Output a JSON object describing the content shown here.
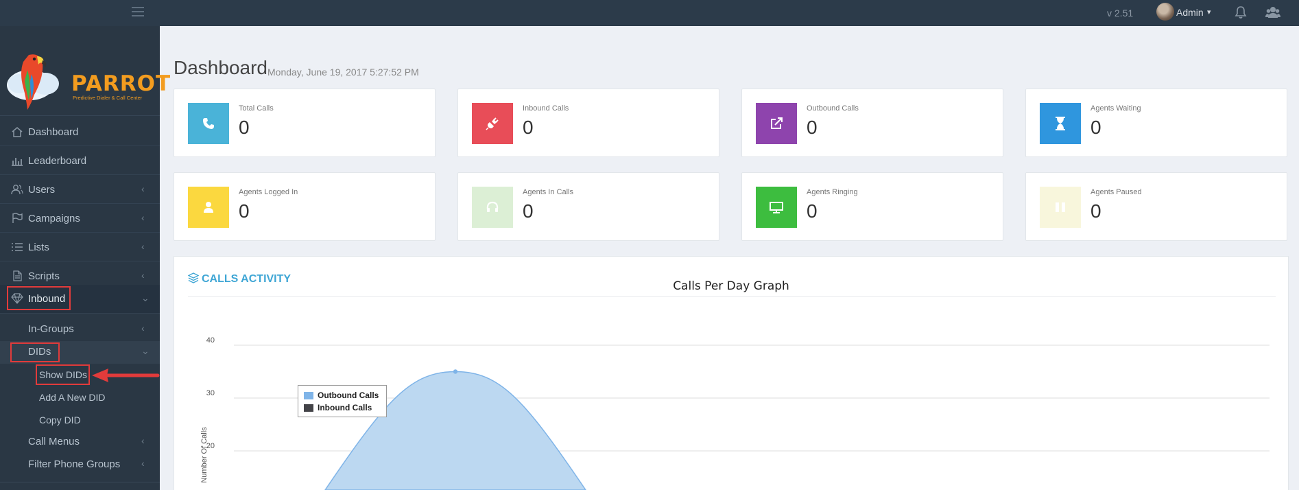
{
  "topbar": {
    "version": "v 2.51",
    "user_name": "Admin",
    "icons": [
      "menu-icon",
      "bell-icon",
      "users-icon"
    ]
  },
  "brand": {
    "name": "PARROT",
    "tagline": "Predictive Dialer & Call Center"
  },
  "sidebar": {
    "items": [
      {
        "label": "Dashboard",
        "icon": "home-icon"
      },
      {
        "label": "Leaderboard",
        "icon": "bar-chart-icon"
      },
      {
        "label": "Users",
        "icon": "users-icon"
      },
      {
        "label": "Campaigns",
        "icon": "flag-icon"
      },
      {
        "label": "Lists",
        "icon": "list-icon"
      },
      {
        "label": "Scripts",
        "icon": "document-icon"
      },
      {
        "label": "Inbound",
        "icon": "diamond-icon"
      }
    ],
    "inbound_sub": [
      {
        "label": "In-Groups"
      },
      {
        "label": "DIDs"
      },
      {
        "label": "Call Menus"
      },
      {
        "label": "Filter Phone Groups"
      }
    ],
    "dids_sub": [
      {
        "label": "Show DIDs"
      },
      {
        "label": "Add A New DID"
      },
      {
        "label": "Copy DID"
      }
    ]
  },
  "header": {
    "title": "Dashboard",
    "datetime": "Monday, June 19, 2017 5:27:52 PM"
  },
  "stats": [
    {
      "label": "Total Calls",
      "value": "0",
      "color": "#4ab3d8",
      "icon": "phone-icon"
    },
    {
      "label": "Inbound Calls",
      "value": "0",
      "color": "#e84d58",
      "icon": "plug-icon"
    },
    {
      "label": "Outbound Calls",
      "value": "0",
      "color": "#8e44ad",
      "icon": "external-link-icon"
    },
    {
      "label": "Agents Waiting",
      "value": "0",
      "color": "#2f96de",
      "icon": "hourglass-icon"
    },
    {
      "label": "Agents Logged In",
      "value": "0",
      "color": "#fbd83f",
      "icon": "user-icon"
    },
    {
      "label": "Agents In Calls",
      "value": "0",
      "color": "#dcefd5",
      "icon": "headset-icon"
    },
    {
      "label": "Agents Ringing",
      "value": "0",
      "color": "#3dbd3f",
      "icon": "monitor-icon"
    },
    {
      "label": "Agents Paused",
      "value": "0",
      "color": "#f8f6dc",
      "icon": "pause-icon"
    }
  ],
  "activity": {
    "heading": "CALLS ACTIVITY"
  },
  "chart_data": {
    "type": "area",
    "title": "Calls Per Day Graph",
    "xlabel": "",
    "ylabel": "Number Of Calls",
    "ylim": [
      15,
      40
    ],
    "y_ticks": [
      20,
      30,
      40
    ],
    "grid": true,
    "legend_position": "top-left",
    "series": [
      {
        "name": "Outbound Calls",
        "color": "#7fb4e8",
        "fill": "#bcd8f1",
        "peak": 35
      },
      {
        "name": "Inbound Calls",
        "color": "#434348"
      }
    ]
  }
}
